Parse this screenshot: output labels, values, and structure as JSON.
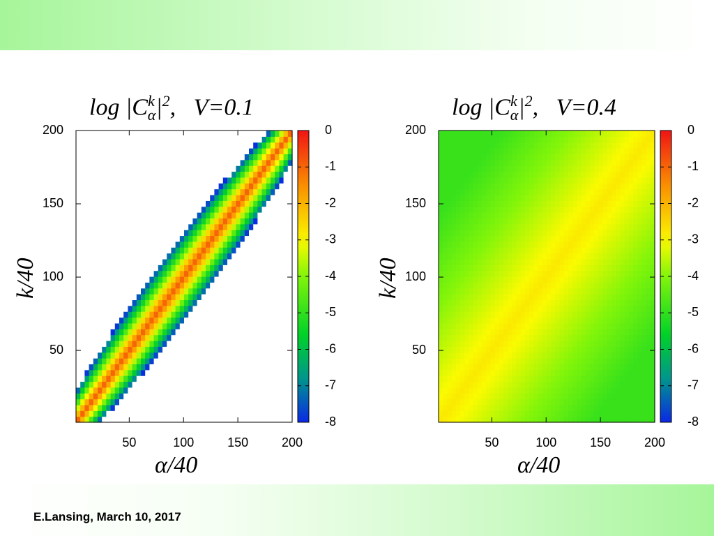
{
  "footer": {
    "text": "E.Lansing, March 10, 2017"
  },
  "colors": {
    "band": "#a6f59a"
  },
  "chart_data": [
    {
      "type": "heatmap",
      "title_prefix": "log |C",
      "title_sup": "k",
      "title_sub": "α",
      "title_pow": "2",
      "title_comma": ",",
      "title_param": "V=0.1",
      "xlabel": "α/40",
      "ylabel": "k/40",
      "xlim": [
        1,
        200
      ],
      "ylim": [
        1,
        200
      ],
      "xticks": [
        50,
        100,
        150,
        200
      ],
      "yticks": [
        50,
        100,
        150,
        200
      ],
      "colorbar": {
        "min": -8,
        "max": 0,
        "ticks": [
          0,
          -1,
          -2,
          -3,
          -4,
          -5,
          -6,
          -7,
          -8
        ]
      },
      "model": {
        "peak": -1.0,
        "diag_width": 8,
        "decay": 0.05,
        "cutoff": -8
      }
    },
    {
      "type": "heatmap",
      "title_prefix": "log |C",
      "title_sup": "k",
      "title_sub": "α",
      "title_pow": "2",
      "title_comma": ",",
      "title_param": "V=0.4",
      "xlabel": "α/40",
      "ylabel": "k/40",
      "xlim": [
        1,
        200
      ],
      "ylim": [
        1,
        200
      ],
      "xticks": [
        50,
        100,
        150,
        200
      ],
      "yticks": [
        50,
        100,
        150,
        200
      ],
      "colorbar": {
        "min": -8,
        "max": 0,
        "ticks": [
          0,
          -1,
          -2,
          -3,
          -4,
          -5,
          -6,
          -7,
          -8
        ]
      },
      "model": {
        "peak": -2.8,
        "diag_width": 40,
        "decay": 0.012,
        "cutoff": -8
      }
    }
  ]
}
